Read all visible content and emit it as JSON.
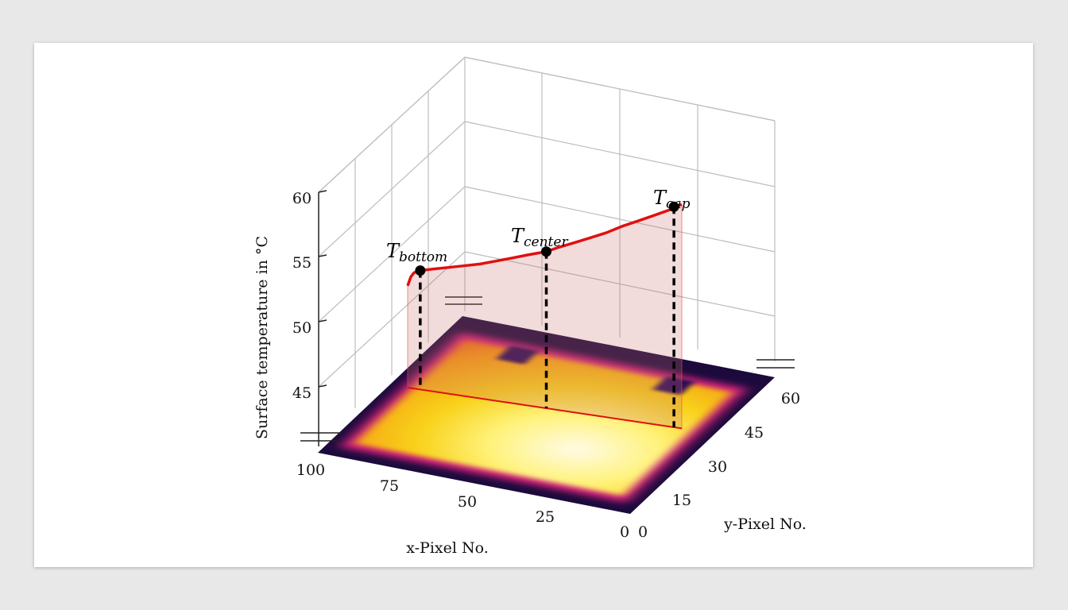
{
  "chart_data": {
    "type": "line",
    "subtype": "3d-profile-over-heatmap",
    "xlabel": "x-Pixel No.",
    "ylabel": "y-Pixel No.",
    "zlabel": "Surface temperature in °C",
    "x_ticks": [
      "100",
      "75",
      "50",
      "25",
      "0"
    ],
    "y_ticks": [
      "0",
      "15",
      "30",
      "45",
      "60"
    ],
    "z_ticks": [
      "60",
      "55",
      "50",
      "45"
    ],
    "zlim": [
      42,
      60
    ],
    "grid": true,
    "colormap": "inferno-like (purple-red-orange-yellow-white)",
    "series": [
      {
        "color": "#e01010",
        "x": [
          88,
          87,
          86,
          84,
          80,
          75,
          70,
          65,
          60,
          55,
          50,
          44,
          40,
          35,
          30,
          25,
          20,
          15,
          10,
          5,
          3.5,
          1
        ],
        "values": [
          52.3,
          53.2,
          53.6,
          53.8,
          53.9,
          54.0,
          54.1,
          54.2,
          54.4,
          54.6,
          54.8,
          55.0,
          55.3,
          55.6,
          55.9,
          56.2,
          56.6,
          56.9,
          57.2,
          57.5,
          57.7,
          57.8
        ]
      }
    ],
    "annotations": [
      {
        "base": "T",
        "sub": "bottom",
        "x": 84,
        "value": 53.8
      },
      {
        "base": "T",
        "sub": "center",
        "x": 44,
        "value": 55.0
      },
      {
        "base": "T",
        "sub": "cap",
        "x": 3.5,
        "value": 57.7
      }
    ],
    "colors": {
      "profile": "#e01010",
      "wall_fill": "#d89090",
      "marker": "#000000"
    }
  }
}
